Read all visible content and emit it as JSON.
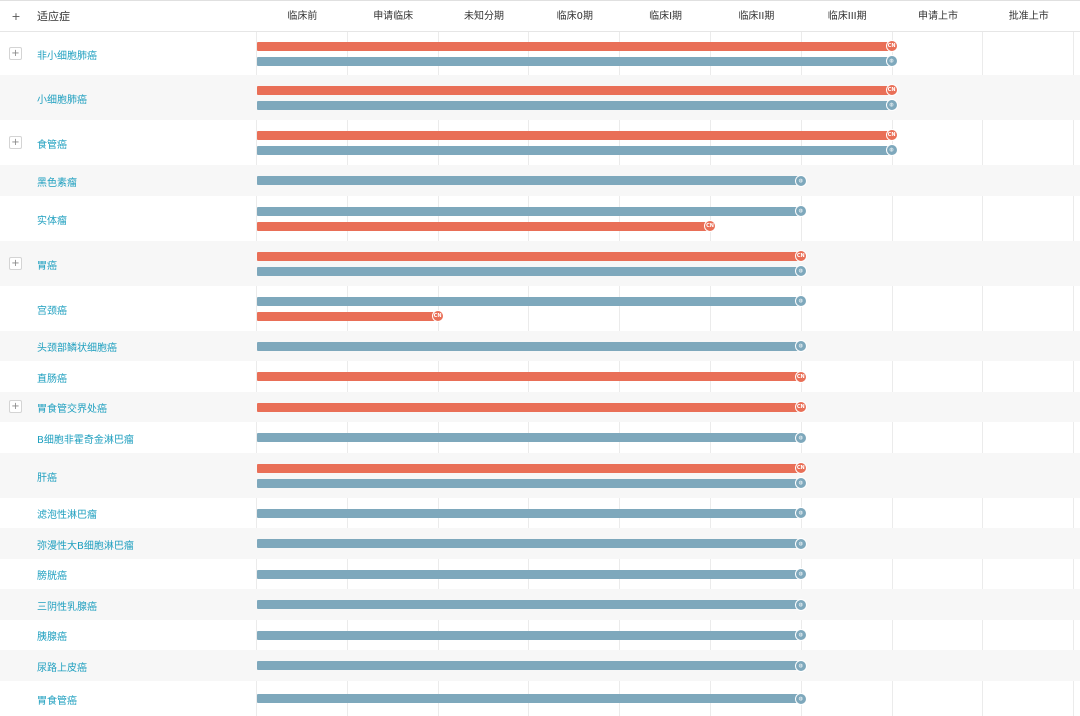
{
  "header": {
    "expand_symbol": "+",
    "indication_title": "适应症",
    "stages": [
      "临床前",
      "申请临床",
      "未知分期",
      "临床0期",
      "临床I期",
      "临床II期",
      "临床III期",
      "申请上市",
      "批准上市"
    ]
  },
  "marker_labels": {
    "cn": "CN",
    "global": "◍"
  },
  "colors": {
    "cn_bar": "#e96f57",
    "global_bar": "#7ea8bc",
    "link_text": "#1e9fbf"
  },
  "rows": [
    {
      "name": "非小细胞肺癌",
      "expandable": true,
      "bars": [
        {
          "region": "cn",
          "stage_index": 6
        },
        {
          "region": "global",
          "stage_index": 6
        }
      ]
    },
    {
      "name": "小细胞肺癌",
      "expandable": false,
      "bars": [
        {
          "region": "cn",
          "stage_index": 6
        },
        {
          "region": "global",
          "stage_index": 6
        }
      ]
    },
    {
      "name": "食管癌",
      "expandable": true,
      "bars": [
        {
          "region": "cn",
          "stage_index": 6
        },
        {
          "region": "global",
          "stage_index": 6
        }
      ]
    },
    {
      "name": "黑色素瘤",
      "expandable": false,
      "bars": [
        {
          "region": "global",
          "stage_index": 5
        }
      ]
    },
    {
      "name": "实体瘤",
      "expandable": false,
      "bars": [
        {
          "region": "global",
          "stage_index": 5
        },
        {
          "region": "cn",
          "stage_index": 4
        }
      ]
    },
    {
      "name": "胃癌",
      "expandable": true,
      "bars": [
        {
          "region": "cn",
          "stage_index": 5
        },
        {
          "region": "global",
          "stage_index": 5
        }
      ]
    },
    {
      "name": "宫颈癌",
      "expandable": false,
      "bars": [
        {
          "region": "global",
          "stage_index": 5
        },
        {
          "region": "cn",
          "stage_index": 1
        }
      ]
    },
    {
      "name": "头颈部鳞状细胞癌",
      "expandable": false,
      "bars": [
        {
          "region": "global",
          "stage_index": 5
        }
      ]
    },
    {
      "name": "直肠癌",
      "expandable": false,
      "bars": [
        {
          "region": "cn",
          "stage_index": 5
        }
      ]
    },
    {
      "name": "胃食管交界处癌",
      "expandable": true,
      "bars": [
        {
          "region": "cn",
          "stage_index": 5
        }
      ]
    },
    {
      "name": "B细胞非霍奇金淋巴瘤",
      "expandable": false,
      "bars": [
        {
          "region": "global",
          "stage_index": 5
        }
      ]
    },
    {
      "name": "肝癌",
      "expandable": false,
      "bars": [
        {
          "region": "cn",
          "stage_index": 5
        },
        {
          "region": "global",
          "stage_index": 5
        }
      ]
    },
    {
      "name": "滤泡性淋巴瘤",
      "expandable": false,
      "bars": [
        {
          "region": "global",
          "stage_index": 5
        }
      ]
    },
    {
      "name": "弥漫性大B细胞淋巴瘤",
      "expandable": false,
      "bars": [
        {
          "region": "global",
          "stage_index": 5
        }
      ]
    },
    {
      "name": "膀胱癌",
      "expandable": false,
      "bars": [
        {
          "region": "global",
          "stage_index": 5
        }
      ]
    },
    {
      "name": "三阴性乳腺癌",
      "expandable": false,
      "bars": [
        {
          "region": "global",
          "stage_index": 5
        }
      ]
    },
    {
      "name": "胰腺癌",
      "expandable": false,
      "bars": [
        {
          "region": "global",
          "stage_index": 5
        }
      ]
    },
    {
      "name": "尿路上皮癌",
      "expandable": false,
      "bars": [
        {
          "region": "global",
          "stage_index": 5
        }
      ]
    },
    {
      "name": "胃食管癌",
      "expandable": false,
      "bars": [
        {
          "region": "global",
          "stage_index": 5
        }
      ]
    }
  ]
}
